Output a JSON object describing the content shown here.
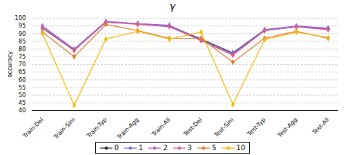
{
  "chart_data": {
    "type": "line",
    "title": "γ",
    "ylabel": "accuracy",
    "categories": [
      "Train-Del",
      "Train-Sim",
      "Train-Typ",
      "Train-Agg",
      "Train-All",
      "Test-Del",
      "Test-Sim",
      "Test-Typ",
      "Test-Agg",
      "Test-All"
    ],
    "series": [
      {
        "name": "0",
        "color": "#2d2d2d",
        "marker": "diamond",
        "values": [
          93.5,
          79.5,
          97.5,
          96.5,
          95.0,
          86.5,
          77.5,
          92.5,
          94.5,
          93.5
        ]
      },
      {
        "name": "1",
        "color": "#7b68ee",
        "marker": "diamond",
        "values": [
          95.0,
          80.0,
          98.0,
          96.5,
          95.5,
          86.0,
          77.0,
          92.5,
          95.0,
          93.5
        ]
      },
      {
        "name": "2",
        "color": "#b060b0",
        "marker": "diamond",
        "values": [
          94.5,
          79.5,
          97.5,
          96.5,
          95.0,
          85.5,
          76.5,
          92.0,
          94.5,
          93.0
        ]
      },
      {
        "name": "3",
        "color": "#d06090",
        "marker": "diamond",
        "values": [
          93.5,
          79.0,
          97.5,
          96.0,
          94.5,
          85.5,
          76.0,
          92.0,
          94.5,
          92.5
        ]
      },
      {
        "name": "5",
        "color": "#e07830",
        "marker": "diamond",
        "values": [
          91.0,
          75.0,
          96.0,
          92.0,
          87.0,
          87.0,
          71.5,
          87.0,
          91.5,
          87.0
        ]
      },
      {
        "name": "10",
        "color": "#f0b800",
        "marker": "diamond",
        "values": [
          90.0,
          43.5,
          86.5,
          91.5,
          86.5,
          91.0,
          44.0,
          86.0,
          91.0,
          87.5
        ]
      }
    ],
    "ylim": [
      40,
      100
    ],
    "yticks": [
      40,
      45,
      50,
      55,
      60,
      65,
      70,
      75,
      80,
      85,
      90,
      95,
      100
    ],
    "grid": true,
    "legend": "bottom"
  }
}
